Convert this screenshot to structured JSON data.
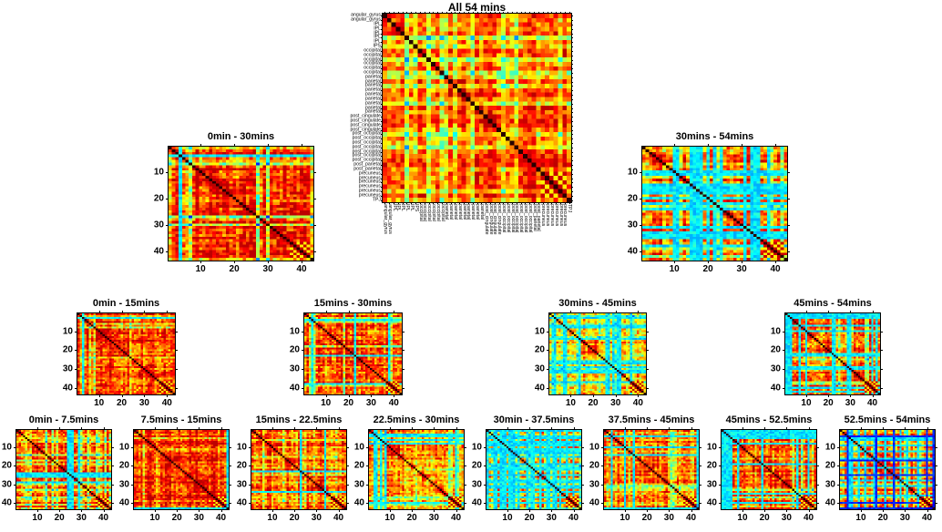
{
  "colors": {
    "background": "#ffffff",
    "frame": "#000000",
    "text": "#000000",
    "colormap_low": "#0000ff",
    "colormap_mid": "#ffff00",
    "colormap_high": "#800000"
  },
  "regions": [
    {
      "name": "angular_gyrus",
      "count": 2
    },
    {
      "name": "IPL",
      "count": 5
    },
    {
      "name": "IPS",
      "count": 1
    },
    {
      "name": "occipital",
      "count": 6
    },
    {
      "name": "parietal",
      "count": 9
    },
    {
      "name": "post_cingulate",
      "count": 4
    },
    {
      "name": "post_occipital",
      "count": 7
    },
    {
      "name": "post_parietal",
      "count": 2
    },
    {
      "name": "precuneus",
      "count": 6
    },
    {
      "name": "TPJ",
      "count": 1
    }
  ],
  "chart_data": [
    {
      "title": "All 54 mins",
      "type": "heatmap",
      "colormap": "jet",
      "matrix_size": 43,
      "symmetric": true,
      "diagonal_value": 1,
      "x_ticks": [],
      "y_ticks": [],
      "x_axis_labels": "regions",
      "y_axis_labels": "regions",
      "appearance_estimate": {
        "seed": 11,
        "mean": 0.8,
        "stripe": 0.15,
        "cool": 0.05,
        "blue": 0,
        "cool_border": 0
      }
    },
    {
      "title": "0min - 30mins",
      "type": "heatmap",
      "colormap": "jet",
      "matrix_size": 43,
      "symmetric": true,
      "diagonal_value": 1,
      "x_ticks": [
        10,
        20,
        30,
        40
      ],
      "y_ticks": [
        10,
        20,
        30,
        40
      ],
      "appearance_estimate": {
        "seed": 21,
        "mean": 0.81,
        "stripe": 0.15,
        "cool": 0.04,
        "blue": 0,
        "cool_border": 0
      }
    },
    {
      "title": "30mins - 54mins",
      "type": "heatmap",
      "colormap": "jet",
      "matrix_size": 43,
      "symmetric": true,
      "diagonal_value": 1,
      "x_ticks": [
        10,
        20,
        30,
        40
      ],
      "y_ticks": [
        10,
        20,
        30,
        40
      ],
      "appearance_estimate": {
        "seed": 31,
        "mean": 0.76,
        "stripe": 0.16,
        "cool": 0.24,
        "blue": 0,
        "cool_border": 0
      }
    },
    {
      "title": "0min - 15mins",
      "type": "heatmap",
      "colormap": "jet",
      "matrix_size": 43,
      "symmetric": true,
      "diagonal_value": 1,
      "x_ticks": [
        10,
        20,
        30,
        40
      ],
      "y_ticks": [
        10,
        20,
        30,
        40
      ],
      "appearance_estimate": {
        "seed": 41,
        "mean": 0.81,
        "stripe": 0.16,
        "cool": 0.05,
        "blue": 0,
        "cool_border": 0
      }
    },
    {
      "title": "15mins - 30mins",
      "type": "heatmap",
      "colormap": "jet",
      "matrix_size": 43,
      "symmetric": true,
      "diagonal_value": 1,
      "x_ticks": [
        10,
        20,
        30,
        40
      ],
      "y_ticks": [
        10,
        20,
        30,
        40
      ],
      "appearance_estimate": {
        "seed": 51,
        "mean": 0.81,
        "stripe": 0.15,
        "cool": 0.05,
        "blue": 0,
        "cool_border": 0
      }
    },
    {
      "title": "30mins - 45mins",
      "type": "heatmap",
      "colormap": "jet",
      "matrix_size": 43,
      "symmetric": true,
      "diagonal_value": 1,
      "x_ticks": [
        10,
        20,
        30,
        40
      ],
      "y_ticks": [
        10,
        20,
        30,
        40
      ],
      "appearance_estimate": {
        "seed": 61,
        "mean": 0.74,
        "stripe": 0.18,
        "cool": 0.3,
        "blue": 0,
        "cool_border": 0
      }
    },
    {
      "title": "45mins - 54mins",
      "type": "heatmap",
      "colormap": "jet",
      "matrix_size": 43,
      "symmetric": true,
      "diagonal_value": 1,
      "x_ticks": [
        10,
        20,
        30,
        40
      ],
      "y_ticks": [
        10,
        20,
        30,
        40
      ],
      "appearance_estimate": {
        "seed": 71,
        "mean": 0.75,
        "stripe": 0.16,
        "cool": 0.22,
        "blue": 0,
        "cool_border": 3
      }
    },
    {
      "title": "0min - 7.5mins",
      "type": "heatmap",
      "colormap": "jet",
      "matrix_size": 43,
      "symmetric": true,
      "diagonal_value": 1,
      "x_ticks": [
        10,
        20,
        30,
        40
      ],
      "y_ticks": [
        10,
        20,
        30,
        40
      ],
      "appearance_estimate": {
        "seed": 81,
        "mean": 0.79,
        "stripe": 0.18,
        "cool": 0.07,
        "blue": 0,
        "cool_border": 0
      }
    },
    {
      "title": "7.5mins - 15mins",
      "type": "heatmap",
      "colormap": "jet",
      "matrix_size": 43,
      "symmetric": true,
      "diagonal_value": 1,
      "x_ticks": [
        10,
        20,
        30,
        40
      ],
      "y_ticks": [
        10,
        20,
        30,
        40
      ],
      "appearance_estimate": {
        "seed": 91,
        "mean": 0.84,
        "stripe": 0.12,
        "cool": 0.03,
        "blue": 0,
        "cool_border": 0
      }
    },
    {
      "title": "15mins - 22.5mins",
      "type": "heatmap",
      "colormap": "jet",
      "matrix_size": 43,
      "symmetric": true,
      "diagonal_value": 1,
      "x_ticks": [
        10,
        20,
        30,
        40
      ],
      "y_ticks": [
        10,
        20,
        30,
        40
      ],
      "appearance_estimate": {
        "seed": 101,
        "mean": 0.8,
        "stripe": 0.15,
        "cool": 0.06,
        "blue": 0,
        "cool_border": 0
      }
    },
    {
      "title": "22.5mins - 30mins",
      "type": "heatmap",
      "colormap": "jet",
      "matrix_size": 43,
      "symmetric": true,
      "diagonal_value": 1,
      "x_ticks": [
        10,
        20,
        30,
        40
      ],
      "y_ticks": [
        10,
        20,
        30,
        40
      ],
      "appearance_estimate": {
        "seed": 111,
        "mean": 0.74,
        "stripe": 0.2,
        "cool": 0.12,
        "blue": 0,
        "cool_border": 0
      }
    },
    {
      "title": "30min - 37.5mins",
      "type": "heatmap",
      "colormap": "jet",
      "matrix_size": 43,
      "symmetric": true,
      "diagonal_value": 1,
      "x_ticks": [
        10,
        20,
        30,
        40
      ],
      "y_ticks": [
        10,
        20,
        30,
        40
      ],
      "appearance_estimate": {
        "seed": 121,
        "mean": 0.7,
        "stripe": 0.18,
        "cool": 0.33,
        "blue": 0,
        "cool_border": 0
      }
    },
    {
      "title": "37.5mins - 45mins",
      "type": "heatmap",
      "colormap": "jet",
      "matrix_size": 43,
      "symmetric": true,
      "diagonal_value": 1,
      "x_ticks": [
        10,
        20,
        30,
        40
      ],
      "y_ticks": [
        10,
        20,
        30,
        40
      ],
      "appearance_estimate": {
        "seed": 131,
        "mean": 0.74,
        "stripe": 0.18,
        "cool": 0.16,
        "blue": 0,
        "cool_border": 0
      }
    },
    {
      "title": "45mins - 52.5mins",
      "type": "heatmap",
      "colormap": "jet",
      "matrix_size": 43,
      "symmetric": true,
      "diagonal_value": 1,
      "x_ticks": [
        10,
        20,
        30,
        40
      ],
      "y_ticks": [
        10,
        20,
        30,
        40
      ],
      "appearance_estimate": {
        "seed": 141,
        "mean": 0.78,
        "stripe": 0.14,
        "cool": 0.2,
        "blue": 0,
        "cool_border": 5
      }
    },
    {
      "title": "52.5mins - 54mins",
      "type": "heatmap",
      "colormap": "jet",
      "matrix_size": 43,
      "symmetric": true,
      "diagonal_value": 1,
      "x_ticks": [
        10,
        20,
        30,
        40
      ],
      "y_ticks": [
        10,
        20,
        30,
        40
      ],
      "appearance_estimate": {
        "seed": 151,
        "mean": 0.74,
        "stripe": 0.14,
        "cool": 0.16,
        "blue": 0.12,
        "cool_border": 0
      }
    }
  ]
}
